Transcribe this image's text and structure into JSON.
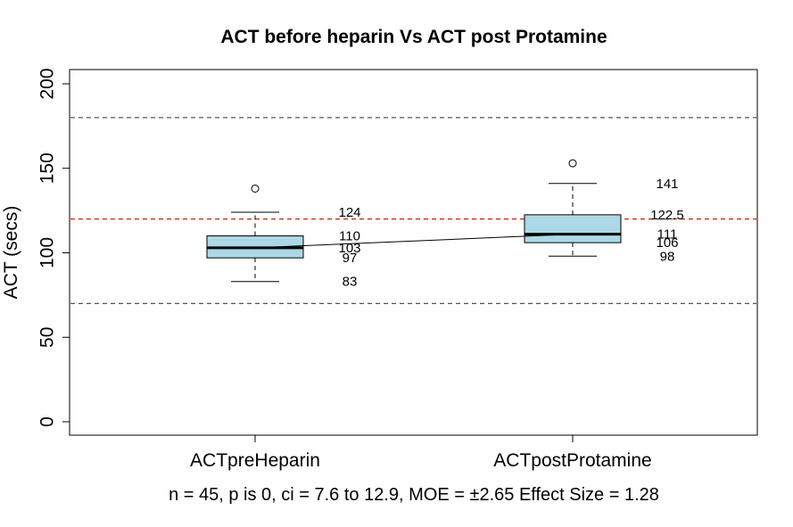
{
  "chart_data": {
    "type": "boxplot",
    "title": "ACT before heparin Vs ACT post Protamine",
    "xlabel": "",
    "ylabel": "ACT (secs)",
    "ylim": [
      -8,
      208
    ],
    "yticks": [
      0,
      50,
      100,
      150,
      200
    ],
    "subtitle": "n = 45, p is 0, ci = 7.6 to 12.9, MOE = ±2.65 Effect Size = 1.28",
    "categories": [
      "ACTpreHeparin",
      "ACTpostProtamine"
    ],
    "boxes": [
      {
        "category": "ACTpreHeparin",
        "whisker_low": 83,
        "q1": 97,
        "median": 103,
        "q3": 110,
        "whisker_high": 124,
        "outliers": [
          138
        ],
        "labels": [
          "124",
          "110",
          "103",
          "97",
          "83"
        ],
        "label_values": [
          124,
          110,
          103,
          97,
          83
        ]
      },
      {
        "category": "ACTpostProtamine",
        "whisker_low": 98,
        "q1": 106,
        "median": 111,
        "q3": 122.5,
        "whisker_high": 141,
        "outliers": [
          153
        ],
        "labels": [
          "141",
          "122.5",
          "111",
          "106",
          "98"
        ],
        "label_values": [
          141,
          122.5,
          111,
          106,
          98
        ]
      }
    ],
    "reference_lines": [
      {
        "value": 180,
        "color": "#555555"
      },
      {
        "value": 120,
        "color": "#cc2200"
      },
      {
        "value": 70,
        "color": "#555555"
      }
    ],
    "colors": {
      "box_fill": "#add8e6",
      "median_line": "#000000",
      "axis": "#000000"
    },
    "grid": false
  }
}
